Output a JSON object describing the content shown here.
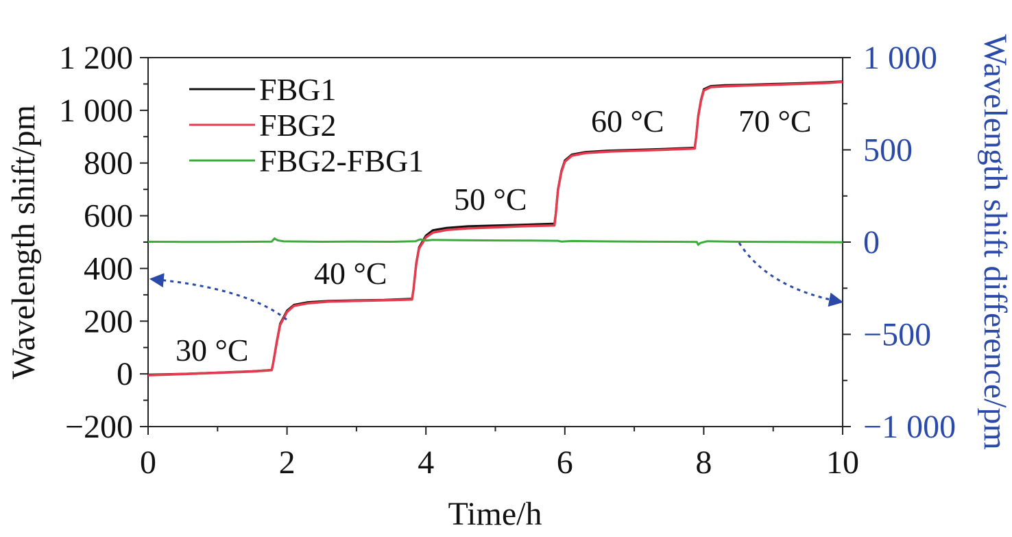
{
  "chart_data": {
    "type": "line",
    "xlabel": "Time/h",
    "ylabel": "Wavelength shift/pm",
    "y2label": "Wavelength shift difference/pm",
    "xlim": [
      0,
      10
    ],
    "ylim": [
      -200,
      1200
    ],
    "y2lim": [
      -1000,
      1000
    ],
    "x_ticks": [
      "0",
      "2",
      "4",
      "6",
      "8",
      "10"
    ],
    "y_ticks": [
      "−200",
      "0",
      "200",
      "400",
      "600",
      "800",
      "1 000",
      "1 200"
    ],
    "y2_ticks": [
      "−1 000",
      "−500",
      "0",
      "500",
      "1 000"
    ],
    "grid": false,
    "legend_position": "top-left",
    "series": [
      {
        "name": "FBG1",
        "axis": "left",
        "color": "#111111",
        "x": [
          0,
          0.5,
          1.0,
          1.5,
          1.78,
          1.8,
          1.85,
          1.9,
          2.0,
          2.1,
          2.3,
          2.6,
          3.0,
          3.4,
          3.8,
          3.82,
          3.86,
          3.9,
          4.0,
          4.1,
          4.3,
          4.6,
          5.0,
          5.4,
          5.85,
          5.87,
          5.9,
          5.95,
          6.0,
          6.1,
          6.3,
          6.6,
          7.0,
          7.4,
          7.87,
          7.89,
          7.92,
          7.96,
          8.0,
          8.1,
          8.3,
          8.6,
          9.0,
          9.4,
          9.8,
          10.0
        ],
        "y": [
          -3,
          0,
          5,
          10,
          15,
          40,
          120,
          190,
          240,
          262,
          272,
          277,
          279,
          281,
          285,
          320,
          420,
          480,
          525,
          545,
          554,
          560,
          563,
          566,
          570,
          610,
          700,
          770,
          810,
          832,
          842,
          847,
          850,
          853,
          858,
          900,
          980,
          1040,
          1080,
          1092,
          1095,
          1097,
          1100,
          1103,
          1107,
          1110
        ]
      },
      {
        "name": "FBG2",
        "axis": "left",
        "color": "#e63a4e",
        "x": [
          0,
          0.5,
          1.0,
          1.5,
          1.78,
          1.8,
          1.85,
          1.9,
          2.0,
          2.1,
          2.3,
          2.6,
          3.0,
          3.4,
          3.8,
          3.82,
          3.86,
          3.9,
          4.0,
          4.1,
          4.3,
          4.6,
          5.0,
          5.4,
          5.85,
          5.87,
          5.9,
          5.95,
          6.0,
          6.1,
          6.3,
          6.6,
          7.0,
          7.4,
          7.87,
          7.89,
          7.92,
          7.96,
          8.0,
          8.1,
          8.3,
          8.6,
          9.0,
          9.4,
          9.8,
          10.0
        ],
        "y": [
          -5,
          -1,
          4,
          9,
          14,
          38,
          115,
          185,
          235,
          258,
          268,
          274,
          277,
          279,
          282,
          318,
          415,
          475,
          518,
          536,
          546,
          552,
          556,
          560,
          563,
          605,
          695,
          765,
          805,
          828,
          838,
          843,
          847,
          850,
          855,
          897,
          975,
          1035,
          1075,
          1088,
          1091,
          1094,
          1097,
          1100,
          1104,
          1108
        ]
      },
      {
        "name": "FBG2-FBG1",
        "axis": "right",
        "color": "#3aac3a",
        "x": [
          0,
          0.5,
          1.0,
          1.5,
          1.78,
          1.82,
          1.86,
          1.95,
          2.5,
          3.0,
          3.5,
          3.85,
          3.92,
          4.0,
          4.1,
          4.5,
          5.0,
          5.5,
          5.9,
          5.95,
          6.1,
          6.5,
          7.0,
          7.5,
          7.9,
          7.92,
          7.95,
          8.05,
          8.5,
          9.0,
          9.5,
          10.0
        ],
        "y": [
          2,
          1,
          1,
          2,
          3,
          20,
          10,
          4,
          2,
          3,
          2,
          5,
          15,
          8,
          12,
          10,
          9,
          8,
          7,
          3,
          6,
          4,
          3,
          2,
          1,
          -15,
          -5,
          5,
          2,
          1,
          0,
          -1
        ]
      }
    ],
    "annotations": [
      "30 °C",
      "40 °C",
      "50 °C",
      "60 °C",
      "70 °C"
    ],
    "arrow_color": "#2b4aa8"
  }
}
